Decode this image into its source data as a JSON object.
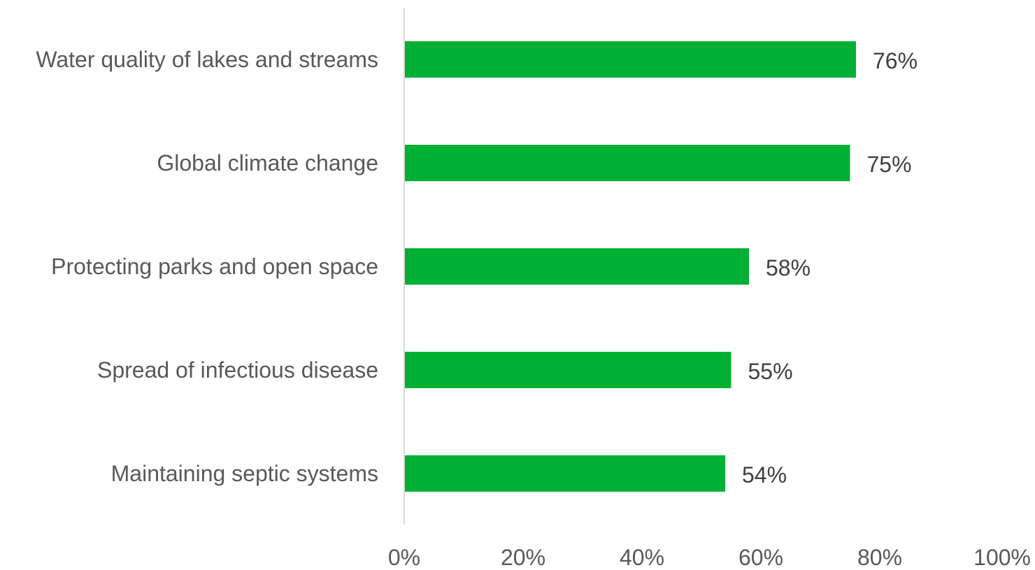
{
  "chart_data": {
    "type": "bar",
    "orientation": "horizontal",
    "categories": [
      "Water quality of lakes and streams",
      "Global climate change",
      "Protecting parks and open space",
      "Spread of infectious disease",
      "Maintaining septic systems"
    ],
    "values": [
      76,
      75,
      58,
      55,
      54
    ],
    "data_labels": [
      "76%",
      "75%",
      "58%",
      "55%",
      "54%"
    ],
    "xlim": [
      0,
      100
    ],
    "x_ticks": [
      0,
      20,
      40,
      60,
      80,
      100
    ],
    "x_tick_labels": [
      "0%",
      "20%",
      "40%",
      "60%",
      "80%",
      "100%"
    ],
    "title": "",
    "xlabel": "",
    "ylabel": "",
    "grid": false,
    "legend": "none",
    "bar_color": "#00b034",
    "axis_color": "#d9d9d9"
  }
}
